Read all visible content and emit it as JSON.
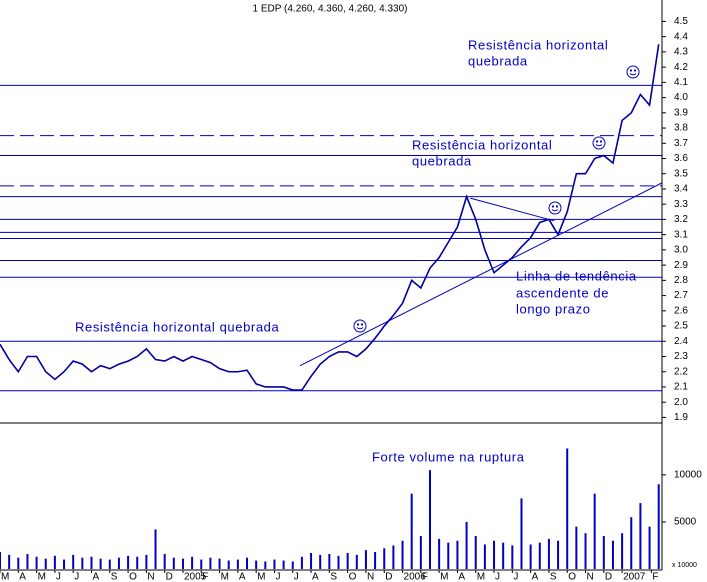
{
  "chart_data": [
    {
      "type": "line",
      "title": "1 EDP (4.260, 4.360, 4.260, 4.330)",
      "color": "#0000a0",
      "xlim": [
        0,
        36.18
      ],
      "ylim": [
        1.87,
        4.575
      ],
      "yticks": [
        1.9,
        {
          "value": 2,
          "label": "2.0"
        },
        2.1,
        2.2,
        2.3,
        2.4,
        2.5,
        2.6,
        2.7,
        2.8,
        2.9,
        {
          "value": 3,
          "label": "3.0"
        },
        3.1,
        3.2,
        3.3,
        3.4,
        3.5,
        3.6,
        3.7,
        3.8,
        3.9,
        {
          "value": 4,
          "label": "4.0"
        },
        4.1,
        4.2,
        4.3,
        4.4,
        4.5
      ],
      "x": [
        0,
        0.5,
        1,
        1.5,
        2,
        2.5,
        3,
        3.5,
        4,
        4.5,
        5,
        5.5,
        6,
        6.5,
        7,
        7.5,
        8,
        8.5,
        9,
        9.5,
        10,
        10.5,
        11,
        11.5,
        12,
        12.5,
        13,
        13.5,
        14,
        14.5,
        15,
        15.5,
        16,
        16.5,
        17,
        17.5,
        18,
        18.5,
        19,
        19.5,
        20,
        20.5,
        21,
        21.5,
        22,
        22.5,
        23,
        23.5,
        24,
        24.5,
        25,
        25.5,
        26,
        26.5,
        27,
        27.5,
        28,
        28.5,
        29,
        29.5,
        30,
        30.5,
        31,
        31.5,
        32,
        32.5,
        33,
        33.5,
        34,
        34.5,
        35,
        35.5,
        36
      ],
      "values": [
        2.38,
        2.28,
        2.2,
        2.3,
        2.3,
        2.2,
        2.15,
        2.2,
        2.27,
        2.25,
        2.2,
        2.24,
        2.22,
        2.25,
        2.27,
        2.3,
        2.35,
        2.28,
        2.27,
        2.3,
        2.27,
        2.3,
        2.28,
        2.26,
        2.22,
        2.2,
        2.2,
        2.21,
        2.12,
        2.1,
        2.1,
        2.1,
        2.08,
        2.08,
        2.17,
        2.25,
        2.3,
        2.33,
        2.33,
        2.3,
        2.35,
        2.42,
        2.5,
        2.57,
        2.65,
        2.8,
        2.75,
        2.88,
        2.95,
        3.05,
        3.15,
        3.35,
        3.2,
        3.0,
        2.85,
        2.9,
        2.95,
        3.02,
        3.08,
        3.18,
        3.2,
        3.1,
        3.25,
        3.5,
        3.5,
        3.6,
        3.62,
        3.57,
        3.85,
        3.9,
        4.02,
        3.95,
        4.35
      ],
      "hlines": [
        {
          "value": 4.08,
          "style": "solid"
        },
        {
          "value": 3.75,
          "style": "dashed"
        },
        {
          "value": 3.62,
          "style": "solid"
        },
        {
          "value": 3.42,
          "style": "dashed"
        },
        {
          "value": 3.35,
          "style": "solid"
        },
        {
          "value": 3.2,
          "style": "solid"
        },
        {
          "value": 3.115,
          "style": "solid"
        },
        {
          "value": 3.075,
          "style": "solid"
        },
        {
          "value": 2.93,
          "style": "solid"
        },
        {
          "value": 2.82,
          "style": "solid"
        },
        {
          "value": 2.4,
          "style": "solid"
        },
        {
          "value": 2.075,
          "style": "solid"
        }
      ],
      "trendlines": [
        {
          "x": [
            16.4,
            36.18
          ],
          "values": [
            2.24,
            3.44
          ]
        },
        {
          "x": [
            25.7,
            30.3
          ],
          "values": [
            3.34,
            3.19
          ]
        }
      ],
      "annotations": [
        {
          "lines": [
            "Resistência horizontal",
            "quebrada"
          ]
        },
        {
          "lines": [
            "Resistência horizontal",
            "quebrada"
          ]
        },
        {
          "lines": [
            "Resistência horizontal quebrada"
          ]
        },
        {
          "lines": [
            "Linha de tendência",
            "ascendente de",
            "longo prazo"
          ]
        }
      ]
    },
    {
      "type": "bar",
      "color": "#0000c0",
      "xlim": [
        0,
        36.18
      ],
      "ylim": [
        0,
        15400
      ],
      "yticks": [
        5000,
        10000
      ],
      "unit_label": "x 10000",
      "annotation": "Forte volume na ruptura",
      "xticks": [
        {
          "value": 0,
          "label": "M"
        },
        {
          "value": 1,
          "label": "A"
        },
        {
          "value": 2,
          "label": "M"
        },
        {
          "value": 3,
          "label": "J"
        },
        {
          "value": 4,
          "label": "J"
        },
        {
          "value": 5,
          "label": "A"
        },
        {
          "value": 6,
          "label": "S"
        },
        {
          "value": 7,
          "label": "O"
        },
        {
          "value": 8,
          "label": "N"
        },
        {
          "value": 9,
          "label": "D"
        },
        {
          "value": 10,
          "label": "2005"
        },
        {
          "value": 11,
          "label": "F"
        },
        {
          "value": 12,
          "label": "M"
        },
        {
          "value": 13,
          "label": "A"
        },
        {
          "value": 14,
          "label": "M"
        },
        {
          "value": 15,
          "label": "J"
        },
        {
          "value": 16,
          "label": "J"
        },
        {
          "value": 17,
          "label": "A"
        },
        {
          "value": 18,
          "label": "S"
        },
        {
          "value": 19,
          "label": "O"
        },
        {
          "value": 20,
          "label": "N"
        },
        {
          "value": 21,
          "label": "D"
        },
        {
          "value": 22,
          "label": "2006"
        },
        {
          "value": 23,
          "label": "F"
        },
        {
          "value": 24,
          "label": "M"
        },
        {
          "value": 25,
          "label": "A"
        },
        {
          "value": 26,
          "label": "M"
        },
        {
          "value": 27,
          "label": "J"
        },
        {
          "value": 28,
          "label": "J"
        },
        {
          "value": 29,
          "label": "A"
        },
        {
          "value": 30,
          "label": "S"
        },
        {
          "value": 31,
          "label": "O"
        },
        {
          "value": 32,
          "label": "N"
        },
        {
          "value": 33,
          "label": "D"
        },
        {
          "value": 34,
          "label": "2007"
        },
        {
          "value": 35.6,
          "label": "F"
        }
      ],
      "x": [
        0,
        0.5,
        1,
        1.5,
        2,
        2.5,
        3,
        3.5,
        4,
        4.5,
        5,
        5.5,
        6,
        6.5,
        7,
        7.5,
        8,
        8.5,
        9,
        9.5,
        10,
        10.5,
        11,
        11.5,
        12,
        12.5,
        13,
        13.5,
        14,
        14.5,
        15,
        15.5,
        16,
        16.5,
        17,
        17.5,
        18,
        18.5,
        19,
        19.5,
        20,
        20.5,
        21,
        21.5,
        22,
        22.5,
        23,
        23.5,
        24,
        24.5,
        25,
        25.5,
        26,
        26.5,
        27,
        27.5,
        28,
        28.5,
        29,
        29.5,
        30,
        30.5,
        31,
        31.5,
        32,
        32.5,
        33,
        33.5,
        34,
        34.5,
        35,
        35.5,
        36
      ],
      "values": [
        1800,
        1500,
        1200,
        1600,
        1300,
        1100,
        1400,
        1000,
        1500,
        1200,
        1300,
        1100,
        1000,
        1200,
        1400,
        1300,
        1500,
        4200,
        1600,
        1200,
        1100,
        1300,
        1000,
        1200,
        1100,
        900,
        1000,
        1200,
        900,
        800,
        1000,
        900,
        800,
        1300,
        1700,
        1500,
        1600,
        1400,
        1700,
        1500,
        2000,
        1800,
        2200,
        2500,
        3000,
        8000,
        3500,
        10500,
        3200,
        2800,
        3000,
        5000,
        3500,
        2600,
        3000,
        2800,
        2500,
        7500,
        2600,
        2800,
        3200,
        3000,
        12800,
        4500,
        3800,
        8000,
        3500,
        3000,
        3800,
        5500,
        7000,
        4500,
        9000
      ]
    }
  ]
}
